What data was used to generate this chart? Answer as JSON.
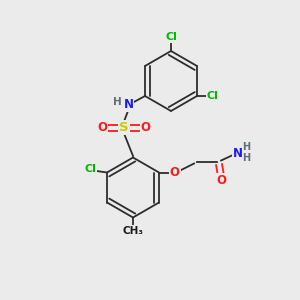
{
  "bg_color": "#ebebeb",
  "bond_color": "#2d2d2d",
  "atom_colors": {
    "C": "#1a1a1a",
    "H": "#607070",
    "N": "#1a1aff",
    "O": "#ff1a1a",
    "S": "#cccc00",
    "Cl": "#00bb00"
  }
}
